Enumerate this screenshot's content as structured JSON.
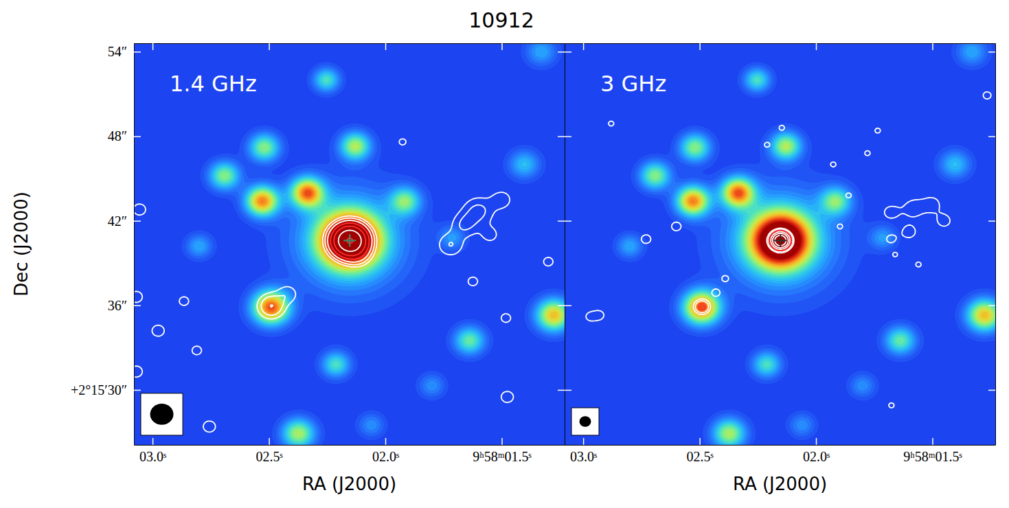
{
  "chart_data": {
    "type": "image",
    "title": "10912",
    "x_label": "RA (J2000)",
    "y_label": "Dec (J2000)",
    "xlim": [
      3.08,
      1.23
    ],
    "xticks": [
      {
        "value": 3.0,
        "label": "03.0ˢ"
      },
      {
        "value": 2.5,
        "label": "02.5ˢ"
      },
      {
        "value": 2.0,
        "label": "02.0ˢ"
      },
      {
        "value": 1.5,
        "label": "9ʰ58ᵐ01.5ˢ"
      }
    ],
    "ylim": [
      26.1,
      54.6
    ],
    "yticks": [
      {
        "value": 54,
        "label": "54″"
      },
      {
        "value": 48,
        "label": "48″"
      },
      {
        "value": 42,
        "label": "42″"
      },
      {
        "value": 36,
        "label": "36″"
      },
      {
        "value": 30,
        "label": "+2°15′30″"
      }
    ],
    "color_range": [
      0,
      1
    ],
    "sources": [
      {
        "ra": 2.153,
        "dec": 40.6,
        "peak": 1.15,
        "size": 1.3
      },
      {
        "ra": 2.153,
        "dec": 40.6,
        "peak": 0.35,
        "size": 2.6
      },
      {
        "ra": 2.529,
        "dec": 43.4,
        "peak": 0.78,
        "size": 0.75
      },
      {
        "ra": 2.335,
        "dec": 44.0,
        "peak": 0.78,
        "size": 0.75
      },
      {
        "ra": 2.491,
        "dec": 35.85,
        "peak": 0.85,
        "size": 0.85
      },
      {
        "ra": 2.691,
        "dec": 45.2,
        "peak": 0.5,
        "size": 0.7
      },
      {
        "ra": 2.52,
        "dec": 47.2,
        "peak": 0.5,
        "size": 0.7
      },
      {
        "ra": 2.129,
        "dec": 47.3,
        "peak": 0.55,
        "size": 0.7
      },
      {
        "ra": 2.253,
        "dec": 52.0,
        "peak": 0.4,
        "size": 0.6
      },
      {
        "ra": 1.915,
        "dec": 43.4,
        "peak": 0.45,
        "size": 0.7
      },
      {
        "ra": 1.638,
        "dec": 33.5,
        "peak": 0.45,
        "size": 0.7
      },
      {
        "ra": 2.212,
        "dec": 31.8,
        "peak": 0.4,
        "size": 0.65
      },
      {
        "ra": 2.373,
        "dec": 26.9,
        "peak": 0.55,
        "size": 0.75
      },
      {
        "ra": 1.276,
        "dec": 35.3,
        "peak": 0.7,
        "size": 0.8
      },
      {
        "ra": 1.403,
        "dec": 46.0,
        "peak": 0.3,
        "size": 0.7
      },
      {
        "ra": 1.712,
        "dec": 40.8,
        "peak": 0.22,
        "size": 0.6
      },
      {
        "ra": 2.8,
        "dec": 40.2,
        "peak": 0.25,
        "size": 0.6
      },
      {
        "ra": 1.8,
        "dec": 30.3,
        "peak": 0.2,
        "size": 0.6
      },
      {
        "ra": 1.33,
        "dec": 54.0,
        "peak": 0.25,
        "size": 0.7
      },
      {
        "ra": 2.06,
        "dec": 27.5,
        "peak": 0.2,
        "size": 0.6
      }
    ],
    "marker": "cross",
    "panels": [
      {
        "label": "1.4 GHz",
        "beam": [
          1.5,
          1.5
        ],
        "contour_levels": [
          0.15,
          0.3,
          0.6,
          1.2,
          2.4,
          4.8,
          9.6
        ],
        "contour_colors": [
          "#ffffff",
          "#ffffff",
          "#ffffff",
          "#ff3030",
          "#ff3030",
          "#ffffff",
          "#ff3030"
        ],
        "markers": [
          {
            "ra": 2.153,
            "dec": 40.6,
            "color": "#3a8a6a"
          }
        ],
        "components": [
          {
            "ra": 2.153,
            "dec": 40.6,
            "peak": 10,
            "size": 0.6
          },
          {
            "ra": 2.12,
            "dec": 39.7,
            "peak": 0.6,
            "size": 0.5
          },
          {
            "ra": 2.49,
            "dec": 35.95,
            "peak": 0.6,
            "size": 0.55
          },
          {
            "ra": 2.42,
            "dec": 36.8,
            "peak": 0.25,
            "size": 0.5
          },
          {
            "ra": 1.72,
            "dec": 40.3,
            "peak": 0.3,
            "size": 0.6
          },
          {
            "ra": 1.66,
            "dec": 41.7,
            "peak": 0.3,
            "size": 0.6
          },
          {
            "ra": 1.6,
            "dec": 42.7,
            "peak": 0.35,
            "size": 0.7
          },
          {
            "ra": 1.5,
            "dec": 43.5,
            "peak": 0.25,
            "size": 0.5
          },
          {
            "ra": 1.55,
            "dec": 41.0,
            "peak": 0.2,
            "size": 0.5
          },
          {
            "ra": 3.07,
            "dec": 36.6,
            "peak": 0.28,
            "size": 0.35
          },
          {
            "ra": 2.976,
            "dec": 34.2,
            "peak": 0.28,
            "size": 0.35
          },
          {
            "ra": 2.865,
            "dec": 36.3,
            "peak": 0.25,
            "size": 0.3
          },
          {
            "ra": 2.81,
            "dec": 32.8,
            "peak": 0.25,
            "size": 0.3
          },
          {
            "ra": 2.756,
            "dec": 27.4,
            "peak": 0.28,
            "size": 0.35
          },
          {
            "ra": 1.624,
            "dec": 37.7,
            "peak": 0.25,
            "size": 0.3
          },
          {
            "ra": 1.482,
            "dec": 35.1,
            "peak": 0.25,
            "size": 0.3
          },
          {
            "ra": 1.476,
            "dec": 29.5,
            "peak": 0.28,
            "size": 0.35
          },
          {
            "ra": 1.926,
            "dec": 47.6,
            "peak": 0.22,
            "size": 0.25
          },
          {
            "ra": 3.056,
            "dec": 42.8,
            "peak": 0.28,
            "size": 0.35
          },
          {
            "ra": 3.07,
            "dec": 31.3,
            "peak": 0.28,
            "size": 0.35
          },
          {
            "ra": 1.3,
            "dec": 39.1,
            "peak": 0.25,
            "size": 0.3
          }
        ]
      },
      {
        "label": "3 GHz",
        "tick_labels": "x",
        "beam": [
          0.75,
          0.75
        ],
        "contour_levels": [
          0.15,
          0.3,
          0.6,
          1.2,
          2.4,
          4.8
        ],
        "contour_colors": [
          "#ffffff",
          "#ffffff",
          "#ff3030",
          "#ffffff",
          "#ffffff",
          "#ffffff"
        ],
        "markers": [
          {
            "ra": 2.153,
            "dec": 40.6,
            "color": "#303030"
          }
        ],
        "components": [
          {
            "ra": 2.153,
            "dec": 40.6,
            "peak": 10,
            "size": 0.3
          },
          {
            "ra": 2.49,
            "dec": 35.9,
            "peak": 0.8,
            "size": 0.3
          },
          {
            "ra": 2.43,
            "dec": 36.9,
            "peak": 0.22,
            "size": 0.3
          },
          {
            "ra": 2.39,
            "dec": 37.9,
            "peak": 0.22,
            "size": 0.25
          },
          {
            "ra": 1.68,
            "dec": 42.6,
            "peak": 0.2,
            "size": 0.5
          },
          {
            "ra": 1.58,
            "dec": 42.9,
            "peak": 0.22,
            "size": 0.6
          },
          {
            "ra": 1.5,
            "dec": 43.2,
            "peak": 0.2,
            "size": 0.5
          },
          {
            "ra": 1.45,
            "dec": 42.0,
            "peak": 0.2,
            "size": 0.5
          },
          {
            "ra": 1.6,
            "dec": 41.2,
            "peak": 0.2,
            "size": 0.5
          },
          {
            "ra": 1.68,
            "dec": 40.7,
            "peak": 0.18,
            "size": 0.4
          },
          {
            "ra": 2.932,
            "dec": 35.3,
            "peak": 0.25,
            "size": 0.3
          },
          {
            "ra": 2.6,
            "dec": 41.6,
            "peak": 0.25,
            "size": 0.3
          },
          {
            "ra": 2.88,
            "dec": 48.9,
            "peak": 0.22,
            "size": 0.2
          },
          {
            "ra": 2.147,
            "dec": 48.6,
            "peak": 0.22,
            "size": 0.2
          },
          {
            "ra": 2.21,
            "dec": 47.4,
            "peak": 0.22,
            "size": 0.2
          },
          {
            "ra": 1.926,
            "dec": 46.0,
            "peak": 0.22,
            "size": 0.2
          },
          {
            "ra": 1.897,
            "dec": 41.6,
            "peak": 0.22,
            "size": 0.2
          },
          {
            "ra": 1.86,
            "dec": 43.8,
            "peak": 0.22,
            "size": 0.2
          },
          {
            "ra": 1.66,
            "dec": 39.6,
            "peak": 0.2,
            "size": 0.2
          },
          {
            "ra": 1.56,
            "dec": 38.9,
            "peak": 0.22,
            "size": 0.2
          },
          {
            "ra": 1.735,
            "dec": 48.4,
            "peak": 0.22,
            "size": 0.2
          },
          {
            "ra": 1.265,
            "dec": 50.9,
            "peak": 0.25,
            "size": 0.25
          },
          {
            "ra": 1.676,
            "dec": 28.9,
            "peak": 0.22,
            "size": 0.2
          },
          {
            "ra": 1.779,
            "dec": 46.8,
            "peak": 0.22,
            "size": 0.2
          },
          {
            "ra": 2.73,
            "dec": 40.7,
            "peak": 0.25,
            "size": 0.3
          },
          {
            "ra": 2.97,
            "dec": 35.2,
            "peak": 0.22,
            "size": 0.3
          }
        ]
      }
    ]
  }
}
